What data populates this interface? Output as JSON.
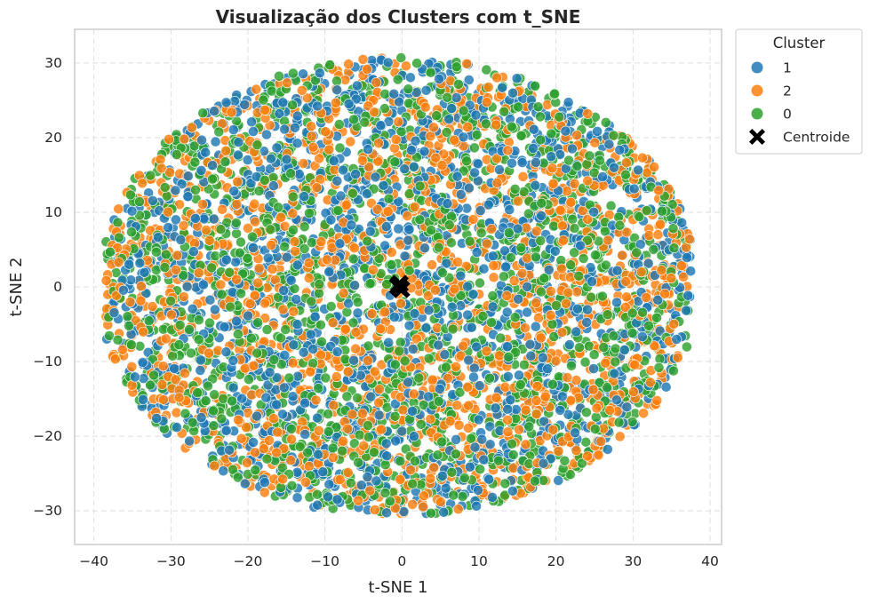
{
  "chart_data": {
    "type": "scatter",
    "title": "Visualização dos Clusters com t_SNE",
    "xlabel": "t-SNE 1",
    "ylabel": "t-SNE 2",
    "xlim": [
      -42.5,
      41.5
    ],
    "ylim": [
      -34.5,
      34.5
    ],
    "xticks": [
      -40,
      -30,
      -20,
      -10,
      0,
      10,
      20,
      30,
      40
    ],
    "yticks": [
      -30,
      -20,
      -10,
      0,
      10,
      20,
      30
    ],
    "xtick_labels": [
      "−40",
      "−30",
      "−20",
      "−10",
      "0",
      "10",
      "20",
      "30",
      "40"
    ],
    "ytick_labels": [
      "−30",
      "−20",
      "−10",
      "0",
      "10",
      "20",
      "30"
    ],
    "grid": true,
    "grid_style": "dashed",
    "point_counts_per_cluster": 1700,
    "cloud_extent": {
      "x": [
        -38.5,
        37.5
      ],
      "y": [
        -31.5,
        31.5
      ]
    },
    "legend": {
      "title": "Cluster",
      "placement": "outside-top-right",
      "entries": [
        {
          "label": "1",
          "color": "#1f77b4",
          "marker": "circle"
        },
        {
          "label": "2",
          "color": "#ff7f0e",
          "marker": "circle"
        },
        {
          "label": "0",
          "color": "#2ca02c",
          "marker": "circle"
        },
        {
          "label": "Centroide",
          "color": "#000000",
          "marker": "X"
        }
      ]
    },
    "series": [
      {
        "name": "1",
        "color": "#1f77b4",
        "description": "points scattered across the full t-SNE cloud"
      },
      {
        "name": "2",
        "color": "#ff7f0e",
        "description": "points scattered across the full t-SNE cloud"
      },
      {
        "name": "0",
        "color": "#2ca02c",
        "description": "points scattered across the full t-SNE cloud"
      }
    ],
    "centroids": [
      {
        "cluster": "1",
        "x": -0.3,
        "y": 0.4
      },
      {
        "cluster": "2",
        "x": -0.1,
        "y": -0.3
      },
      {
        "cluster": "0",
        "x": -0.5,
        "y": 0.1
      }
    ]
  }
}
